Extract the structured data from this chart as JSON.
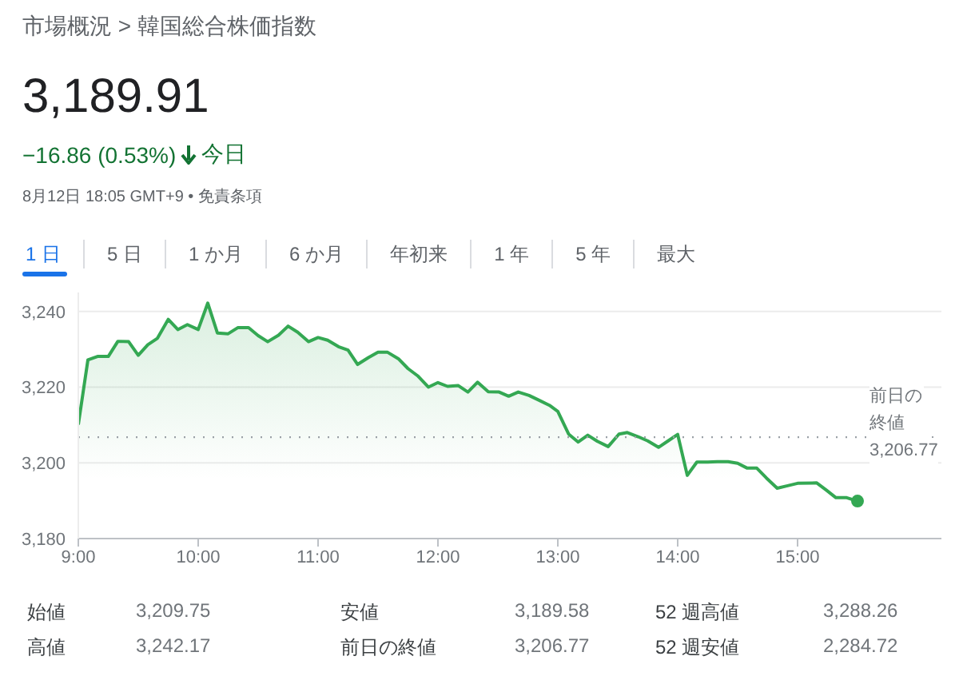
{
  "chart_data": {
    "type": "area",
    "title": "市場概況 > 韓国総合株価指数",
    "subtitle": "3,189.91",
    "annotations": [
      "−16.86 (0.53%)",
      "今日",
      "8月12日 18:05 GMT+9 • 免責条項",
      "1 日",
      "5 日",
      "1 か月",
      "6 か月",
      "年初来",
      "1 年",
      "5 年",
      "最大",
      "始値",
      "3,209.75",
      "安値",
      "3,189.58",
      "52 週高値",
      "3,288.26",
      "高値",
      "3,242.17",
      "前日の終値",
      "3,206.77",
      "52 週安値",
      "2,284.72"
    ],
    "x": [
      9.0,
      9.08,
      9.16,
      9.25,
      9.33,
      9.42,
      9.5,
      9.58,
      9.66,
      9.75,
      9.83,
      9.91,
      10.0,
      10.08,
      10.16,
      10.25,
      10.33,
      10.42,
      10.5,
      10.58,
      10.67,
      10.75,
      10.83,
      10.92,
      11.0,
      11.08,
      11.17,
      11.25,
      11.33,
      11.42,
      11.5,
      11.58,
      11.67,
      11.75,
      11.83,
      11.92,
      12.0,
      12.08,
      12.17,
      12.25,
      12.33,
      12.42,
      12.51,
      12.59,
      12.67,
      12.76,
      12.84,
      12.93,
      13.0,
      13.09,
      13.17,
      13.25,
      13.33,
      13.42,
      13.51,
      13.58,
      13.67,
      13.75,
      13.84,
      13.92,
      14.0,
      14.08,
      14.16,
      14.25,
      14.33,
      14.42,
      14.5,
      14.58,
      14.66,
      14.74,
      14.83,
      14.91,
      15.0,
      15.16,
      15.24,
      15.32,
      15.41,
      15.5
    ],
    "series": [
      {
        "color": "#34a853",
        "values": [
          3210.1,
          3227.2,
          3228.1,
          3228.1,
          3232.1,
          3232.0,
          3228.4,
          3231.2,
          3232.9,
          3237.9,
          3235.2,
          3236.5,
          3235.2,
          3242.2,
          3234.3,
          3234.1,
          3235.7,
          3235.7,
          3233.6,
          3232.0,
          3233.7,
          3236.1,
          3234.5,
          3232.0,
          3233.1,
          3232.4,
          3230.7,
          3229.8,
          3226.0,
          3227.8,
          3229.2,
          3229.2,
          3227.5,
          3224.9,
          3223.0,
          3220.0,
          3221.2,
          3220.2,
          3220.4,
          3218.7,
          3221.3,
          3218.8,
          3218.7,
          3217.6,
          3218.7,
          3217.8,
          3216.6,
          3215.2,
          3213.6,
          3207.6,
          3205.5,
          3207.3,
          3205.7,
          3204.3,
          3207.6,
          3208.0,
          3206.9,
          3205.8,
          3204.1,
          3205.8,
          3207.5,
          3196.7,
          3200.2,
          3200.2,
          3200.3,
          3200.3,
          3199.9,
          3198.6,
          3198.6,
          3196.0,
          3193.3,
          3193.9,
          3194.6,
          3194.7,
          3192.8,
          3190.8,
          3190.8,
          3189.9
        ]
      }
    ],
    "xlim": [
      9,
      16.2
    ],
    "xticks": [
      {
        "value": 9,
        "label": "9:00"
      },
      {
        "value": 10,
        "label": "10:00"
      },
      {
        "value": 11,
        "label": "11:00"
      },
      {
        "value": 12,
        "label": "12:00"
      },
      {
        "value": 13,
        "label": "13:00"
      },
      {
        "value": 14,
        "label": "14:00"
      },
      {
        "value": 15,
        "label": "15:00"
      }
    ],
    "ylim": [
      3180,
      3245
    ],
    "yticks": [
      {
        "value": 3180,
        "label": "3,180"
      },
      {
        "value": 3200,
        "label": "3,200"
      },
      {
        "value": 3220,
        "label": "3,220"
      },
      {
        "value": 3240,
        "label": "3,240"
      }
    ],
    "grid": "y",
    "ref_lines": [
      {
        "axis": "y",
        "value": 3206.77,
        "label": "前日の終値",
        "line_style": "dotted",
        "color": "#9aa0a6"
      }
    ]
  }
}
